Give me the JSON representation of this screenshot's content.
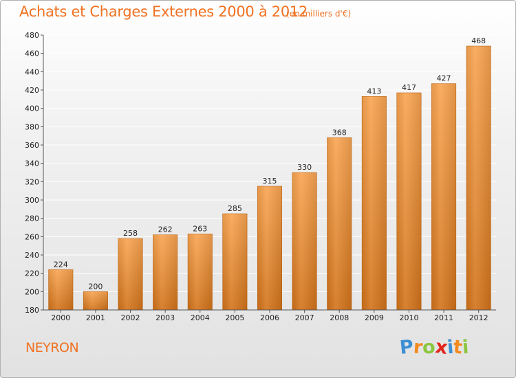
{
  "header": {
    "title": "Achats et Charges Externes 2000 à 2012",
    "subtitle": "(en milliers d'€)"
  },
  "footer": {
    "place": "NEYRON",
    "logo": {
      "letters": [
        "P",
        "r",
        "o",
        "x",
        "i",
        "t",
        "i"
      ],
      "colors": [
        "#3d8fd4",
        "#f28a1e",
        "#8cc63f",
        "#e2241b",
        "#3d8fd4",
        "#f28a1e",
        "#8cc63f"
      ]
    }
  },
  "colors": {
    "bar_light": "#f9a552",
    "bar_dark": "#d2731a",
    "bar_edge": "#c26712",
    "axis": "#555555",
    "grid": "#ffffff",
    "text": "#222222"
  },
  "chart_data": {
    "type": "bar",
    "categories": [
      "2000",
      "2001",
      "2002",
      "2003",
      "2004",
      "2005",
      "2006",
      "2007",
      "2008",
      "2009",
      "2010",
      "2011",
      "2012"
    ],
    "values": [
      224,
      200,
      258,
      262,
      263,
      285,
      315,
      330,
      368,
      413,
      417,
      427,
      468
    ],
    "data_labels": [
      "224",
      "200",
      "258",
      "262",
      "263",
      "285",
      "315",
      "330",
      "368",
      "413",
      "417",
      "427",
      "468"
    ],
    "yticks": [
      "180",
      "200",
      "220",
      "240",
      "260",
      "280",
      "300",
      "320",
      "340",
      "360",
      "380",
      "400",
      "420",
      "440",
      "460",
      "480"
    ],
    "ylim": [
      180,
      480
    ],
    "grid": true,
    "legend": "none"
  }
}
